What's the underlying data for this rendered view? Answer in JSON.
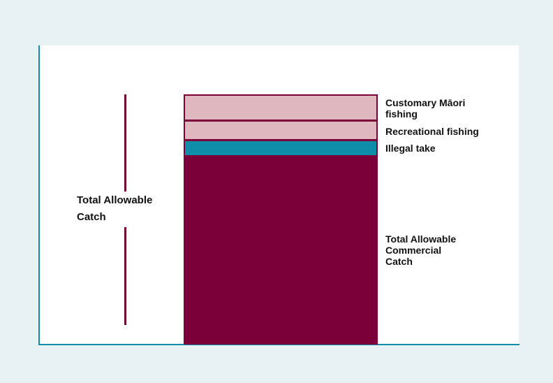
{
  "diagram": {
    "tac_label": "Total Allowable\nCatch",
    "segments": [
      {
        "label": "Customary Māori\nfishing",
        "fill": "#dfb8bf"
      },
      {
        "label": "Recreational fishing",
        "fill": "#dfb8bf"
      },
      {
        "label": "Illegal take",
        "fill": "#0e8ea8"
      },
      {
        "label": "Total Allowable\nCommercial\nCatch",
        "fill": "#7b0039"
      }
    ]
  },
  "colors": {
    "background": "#e8f1f3",
    "panel": "#ffffff",
    "axis": "#0e8ea8",
    "maroon": "#7b0039",
    "pink": "#dfb8bf",
    "teal": "#0e8ea8"
  }
}
